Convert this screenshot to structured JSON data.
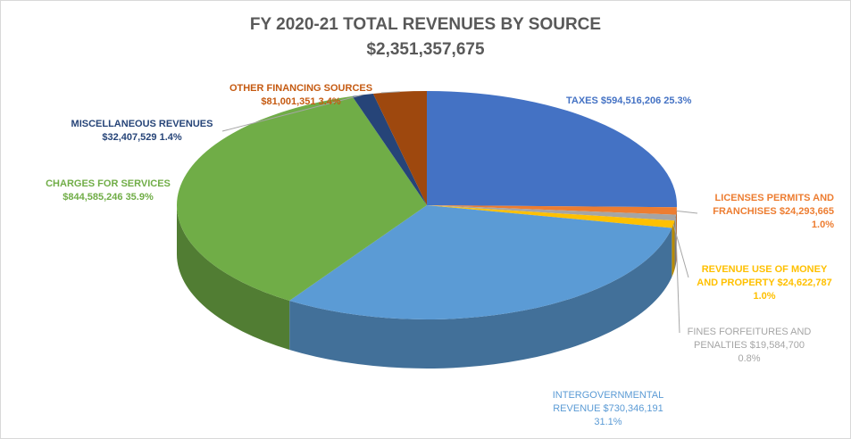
{
  "chart_data": {
    "type": "pie",
    "title": "FY 2020-21 TOTAL REVENUES BY SOURCE",
    "subtitle": "$2,351,357,675",
    "slices": [
      {
        "label": "TAXES",
        "amount": "$594,516,206",
        "percent": "25.3%",
        "value": 594516206,
        "color": "#4472C4",
        "label_color": "#4472C4"
      },
      {
        "label": "LICENSES PERMITS AND FRANCHISES",
        "amount": "$24,293,665",
        "percent": "1.0%",
        "value": 24293665,
        "color": "#ED7D31",
        "label_color": "#ED7D31"
      },
      {
        "label": "FINES FORFEITURES AND PENALTIES",
        "amount": "$19,584,700",
        "percent": "0.8%",
        "value": 19584700,
        "color": "#A5A5A5",
        "label_color": "#A5A5A5"
      },
      {
        "label": "REVENUE USE OF MONEY AND PROPERTY",
        "amount": "$24,622,787",
        "percent": "1.0%",
        "value": 24622787,
        "color": "#FFC000",
        "label_color": "#FFC000"
      },
      {
        "label": "INTERGOVERNMENTAL REVENUE",
        "amount": "$730,346,191",
        "percent": "31.1%",
        "value": 730346191,
        "color": "#5B9BD5",
        "label_color": "#5B9BD5"
      },
      {
        "label": "CHARGES FOR SERVICES",
        "amount": "$844,585,246",
        "percent": "35.9%",
        "value": 844585246,
        "color": "#70AD47",
        "label_color": "#70AD47"
      },
      {
        "label": "MISCELLANEOUS REVENUES",
        "amount": "$32,407,529",
        "percent": "1.4%",
        "value": 32407529,
        "color": "#264478",
        "label_color": "#264478"
      },
      {
        "label": "OTHER FINANCING SOURCES",
        "amount": "$81,001,351",
        "percent": "3.4%",
        "value": 81001351,
        "color": "#9E480E",
        "label_color": "#C55A11"
      }
    ],
    "label_lines": {
      "taxes": [
        "TAXES  $594,516,206  25.3%"
      ],
      "licenses": [
        "LICENSES PERMITS AND",
        "FRANCHISES  $24,293,665",
        "1.0%"
      ],
      "revenue_use": [
        "REVENUE USE OF MONEY",
        "AND PROPERTY  $24,622,787",
        "1.0%"
      ],
      "fines": [
        "FINES FORFEITURES AND",
        "PENALTIES  $19,584,700",
        "0.8%"
      ],
      "intergov": [
        "INTERGOVERNMENTAL",
        "REVENUE  $730,346,191",
        "31.1%"
      ],
      "charges": [
        "CHARGES FOR SERVICES",
        "$844,585,246  35.9%"
      ],
      "misc": [
        "MISCELLANEOUS REVENUES",
        "$32,407,529  1.4%"
      ],
      "other": [
        "OTHER FINANCING SOURCES",
        "$81,001,351  3.4%"
      ]
    },
    "legend": "none",
    "style": "3d-pie"
  }
}
